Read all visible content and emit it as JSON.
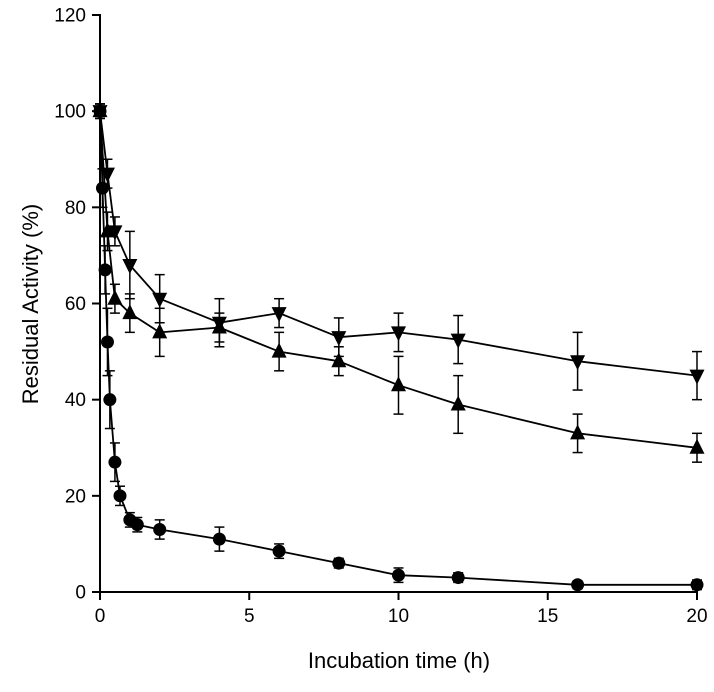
{
  "figure": {
    "background": "#ffffff",
    "foreground": "#000000"
  },
  "chart_data": {
    "type": "line",
    "title": "",
    "xlabel": "Incubation time (h)",
    "ylabel": "Residual Activity (%)",
    "xlim": [
      0,
      20
    ],
    "ylim": [
      0,
      120
    ],
    "xticks": [
      0,
      5,
      10,
      15,
      20
    ],
    "yticks": [
      0,
      20,
      40,
      60,
      80,
      100,
      120
    ],
    "grid": false,
    "legend": "none",
    "line_color": "#000000",
    "marker_color": "#000000",
    "series": [
      {
        "name": "free-enzyme-circles",
        "marker": "circle",
        "x": [
          0,
          0.083,
          0.17,
          0.25,
          0.33,
          0.5,
          0.67,
          1,
          1.25,
          2,
          4,
          6,
          8,
          10,
          12,
          16,
          20
        ],
        "y": [
          100,
          84,
          67,
          52,
          40,
          27,
          20,
          15,
          14,
          13,
          11,
          8.5,
          6,
          3.5,
          3,
          1.5,
          1.5
        ],
        "yerr": [
          1.5,
          4,
          5,
          7,
          6,
          4,
          2,
          1.5,
          1.5,
          2,
          2.5,
          1.5,
          1,
          1.5,
          1,
          0.8,
          1
        ]
      },
      {
        "name": "immobilized-down-triangles",
        "marker": "triangle-down",
        "x": [
          0,
          0.25,
          0.5,
          1,
          2,
          4,
          6,
          8,
          10,
          12,
          16,
          20
        ],
        "y": [
          100,
          87,
          75,
          68,
          61,
          56,
          58,
          53,
          54,
          52.5,
          48,
          45
        ],
        "yerr": [
          1.5,
          3,
          3,
          7,
          5,
          5,
          3,
          4,
          4,
          5,
          6,
          5
        ]
      },
      {
        "name": "immobilized-up-triangles",
        "marker": "triangle-up",
        "x": [
          0,
          0.25,
          0.5,
          1,
          2,
          4,
          6,
          8,
          10,
          12,
          16,
          20
        ],
        "y": [
          100,
          75,
          61,
          58,
          54,
          55,
          50,
          48,
          43,
          39,
          33,
          30
        ],
        "yerr": [
          1.5,
          4,
          3,
          4,
          5,
          3,
          4,
          3,
          6,
          6,
          4,
          3
        ]
      }
    ]
  },
  "style": {
    "tick_font_size": 19,
    "axis_stroke_width": 2,
    "line_stroke_width": 1.8,
    "errorbar_stroke_width": 1.5,
    "tick_length": 8,
    "marker_radius": 6.5,
    "triangle_half_width": 7.5,
    "errorbar_cap_half_width": 5
  }
}
